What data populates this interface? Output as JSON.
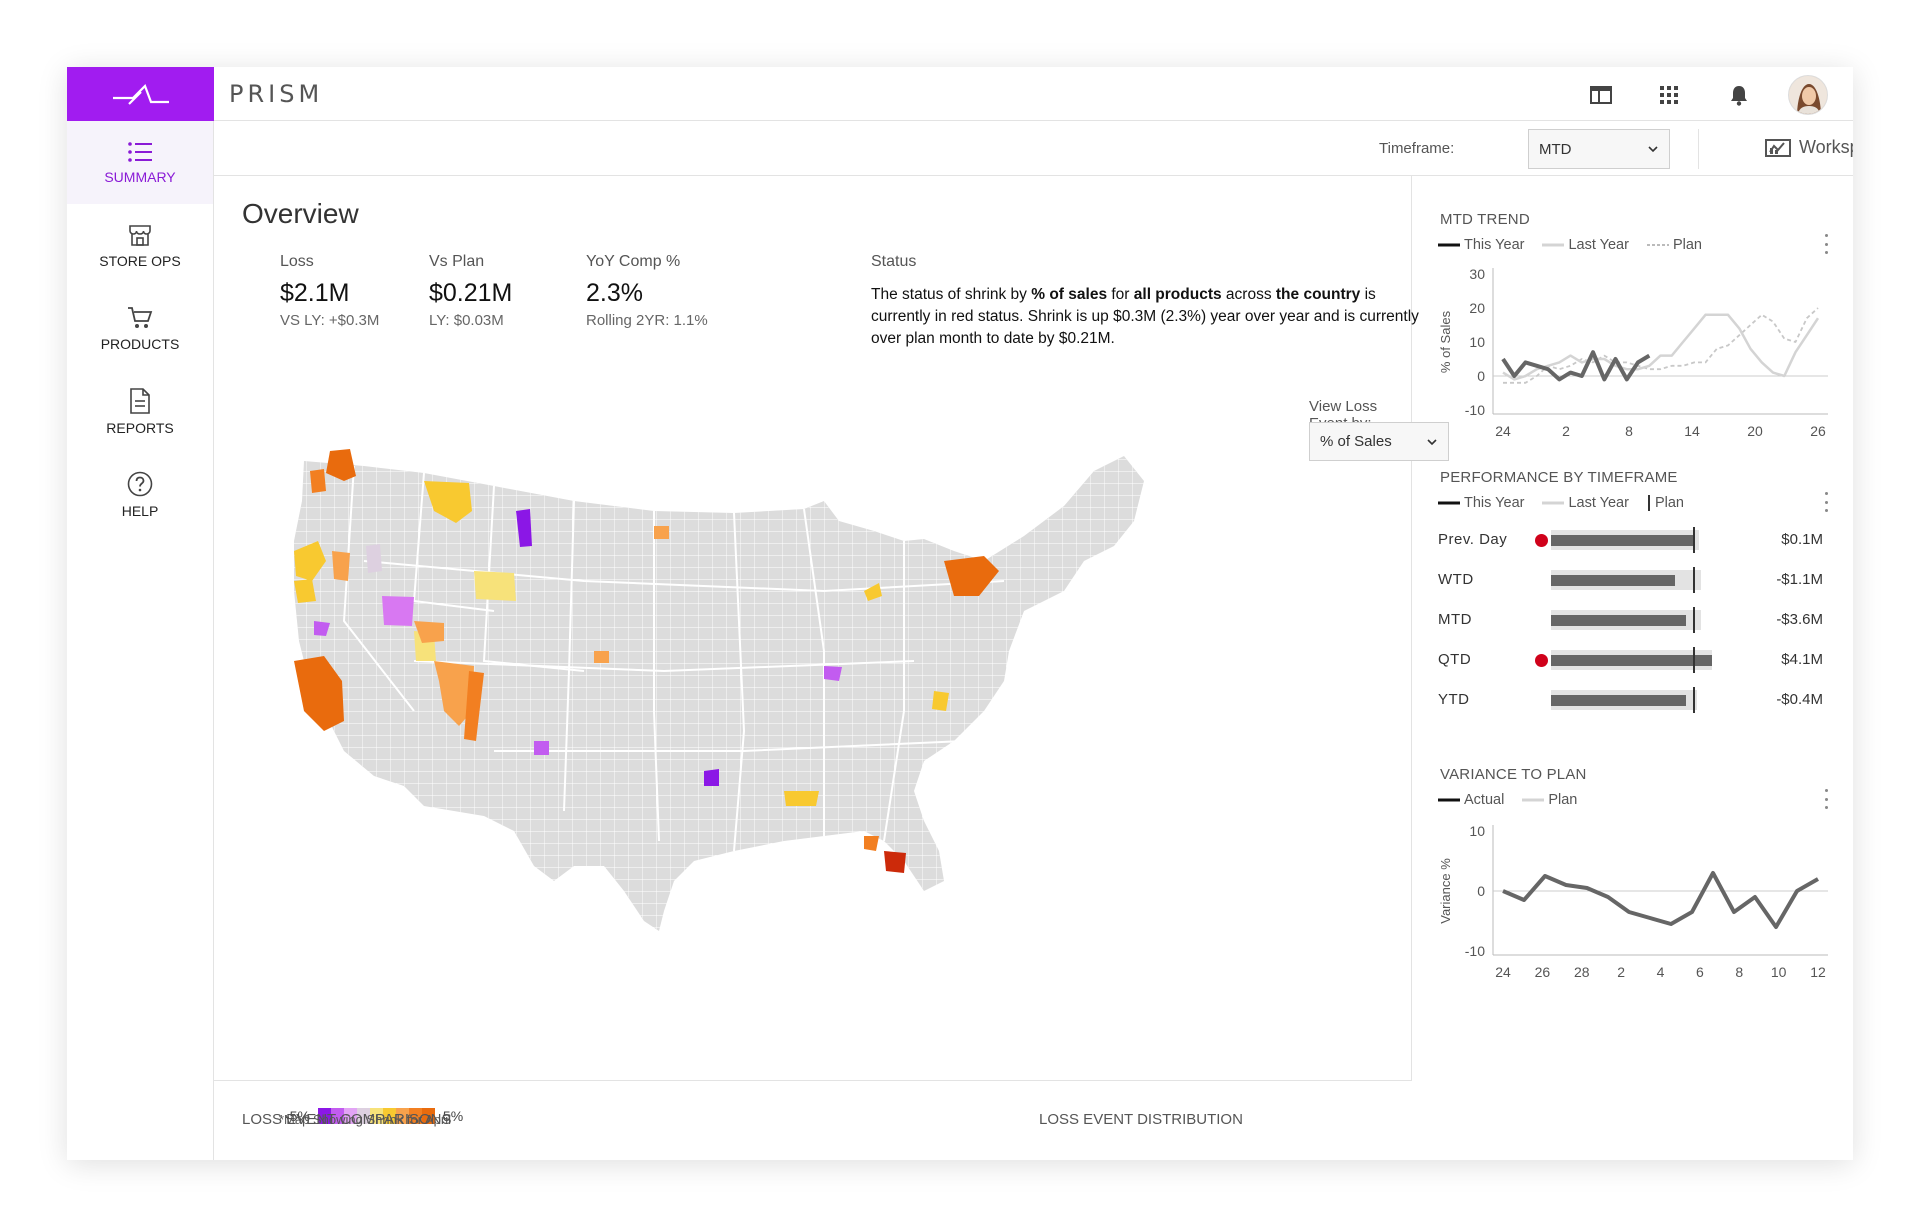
{
  "app": {
    "name": "PRISM"
  },
  "header": {
    "icons": [
      "layout-icon",
      "apps-grid-icon",
      "bell-icon",
      "avatar"
    ]
  },
  "sidebar": {
    "items": [
      {
        "label": "SUMMARY",
        "icon": "list-icon",
        "active": true
      },
      {
        "label": "STORE OPS",
        "icon": "store-icon",
        "active": false
      },
      {
        "label": "PRODUCTS",
        "icon": "cart-icon",
        "active": false
      },
      {
        "label": "REPORTS",
        "icon": "document-icon",
        "active": false
      },
      {
        "label": "HELP",
        "icon": "help-icon",
        "active": false
      }
    ]
  },
  "toolbar": {
    "timeframe_label": "Timeframe:",
    "timeframe_value": "MTD",
    "workspace_label": "Workspace"
  },
  "overview": {
    "title": "Overview",
    "kpis": [
      {
        "label": "Loss",
        "value": "$2.1M",
        "sub": "VS LY: +$0.3M"
      },
      {
        "label": "Vs Plan",
        "value": "$0.21M",
        "sub": "LY: $0.03M"
      },
      {
        "label": "YoY Comp %",
        "value": "2.3%",
        "sub": "Rolling 2YR: 1.1%"
      }
    ],
    "status_label": "Status",
    "status": {
      "t1": "The status of shrink by ",
      "b1": "% of sales",
      "t2": " for ",
      "b2": "all products",
      "t3": " across ",
      "b3": "the country",
      "t4": " is currently in red status. Shrink is up $0.3M (2.3%) year over year and is currently over plan month to date by $0.21M."
    },
    "view_loss_label": "View Loss Event by:",
    "view_loss_value": "% of Sales",
    "legend_min": "-5%",
    "legend_max": "5%",
    "legend_colors": [
      "#8b17e6",
      "#c25cf0",
      "#e2a4f5",
      "#ddd0e0",
      "#f7e27a",
      "#f8c930",
      "#f8a24c",
      "#f27f21",
      "#e96b0d"
    ],
    "map_note": "*Map Showing Shrink for April"
  },
  "mtd_trend": {
    "title": "MTD TREND",
    "legend": [
      "This Year",
      "Last Year",
      "Plan"
    ]
  },
  "chart_data": [
    {
      "type": "line",
      "title": "MTD TREND",
      "ylabel": "% of Sales",
      "ylim": [
        -10,
        30
      ],
      "yticks": [
        "30",
        "20",
        "10",
        "0",
        "-10"
      ],
      "xticks": [
        "24",
        "2",
        "8",
        "14",
        "20",
        "26"
      ],
      "series": [
        {
          "name": "This Year",
          "color": "#666666",
          "values": [
            5,
            0,
            4,
            3,
            2,
            -1,
            1,
            0,
            7,
            -1,
            5,
            -1,
            4,
            6
          ]
        },
        {
          "name": "Last Year",
          "color": "#d4d4d4",
          "values": [
            1,
            -1,
            0,
            2,
            3,
            4,
            6,
            4,
            5,
            5,
            3,
            2,
            2,
            3,
            6,
            6,
            10,
            14,
            18,
            18,
            18,
            14,
            8,
            4,
            1,
            0,
            7,
            12,
            17
          ]
        },
        {
          "name": "Plan",
          "color": "#c8c8c8",
          "dashed": true,
          "values": [
            -2,
            -2,
            -2,
            0,
            3,
            2,
            3,
            5,
            4,
            6,
            4,
            4,
            3,
            2,
            2,
            3,
            3,
            4,
            4,
            8,
            9,
            12,
            15,
            18,
            16,
            11,
            10,
            17,
            20
          ]
        }
      ]
    },
    {
      "type": "bar",
      "title": "PERFORMANCE BY TIMEFRAME",
      "categories": [
        "Prev. Day",
        "WTD",
        "MTD",
        "QTD",
        "YTD"
      ],
      "series": [
        {
          "name": "This Year",
          "values": [
            0.78,
            0.67,
            0.73,
            0.87,
            0.73
          ]
        },
        {
          "name": "Last Year",
          "values": [
            0.8,
            0.81,
            0.81,
            0.87,
            0.79
          ]
        },
        {
          "name": "Plan",
          "values": [
            0.77,
            0.77,
            0.77,
            0.77,
            0.77
          ]
        }
      ],
      "labels": [
        "$0.1M",
        "-$1.1M",
        "-$3.6M",
        "$4.1M",
        "-$0.4M"
      ],
      "alert": [
        true,
        false,
        false,
        true,
        false
      ]
    },
    {
      "type": "line",
      "title": "VARIANCE TO PLAN",
      "ylabel": "Variance %",
      "ylim": [
        -10,
        10
      ],
      "yticks": [
        "10",
        "0",
        "-10"
      ],
      "xticks": [
        "24",
        "26",
        "28",
        "2",
        "4",
        "6",
        "8",
        "10",
        "12"
      ],
      "series": [
        {
          "name": "Actual",
          "color": "#666666",
          "values": [
            0,
            -1.5,
            2.5,
            1,
            0.5,
            -1,
            -3.5,
            -4.5,
            -5.5,
            -3.5,
            3,
            -3.5,
            -1,
            -6,
            0,
            2
          ]
        },
        {
          "name": "Plan",
          "color": "#d4d4d4",
          "values": []
        }
      ]
    }
  ],
  "performance": {
    "title": "PERFORMANCE BY TIMEFRAME",
    "legend": [
      "This Year",
      "Last Year",
      "Plan"
    ]
  },
  "variance": {
    "title": "VARIANCE TO PLAN",
    "legend": [
      "Actual",
      "Plan"
    ]
  },
  "bottom": {
    "left_title": "LOSS EVENT COMPARISONS",
    "right_title": "LOSS EVENT DISTRIBUTION"
  }
}
